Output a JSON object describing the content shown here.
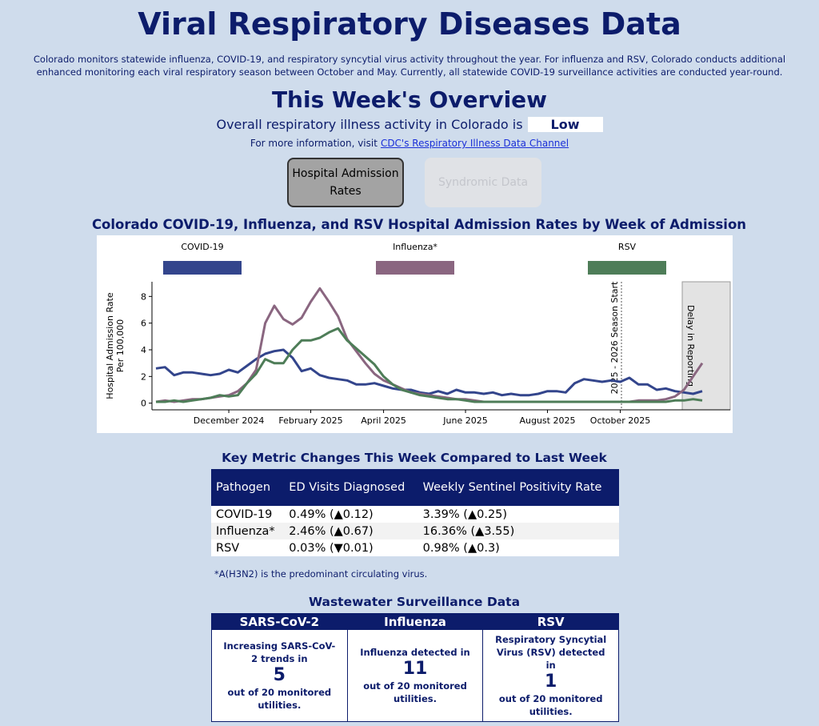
{
  "header": {
    "title": "Viral Respiratory Diseases Data",
    "intro": "Colorado monitors statewide influenza, COVID-19, and respiratory syncytial virus activity throughout the year. For influenza and RSV, Colorado conducts additional enhanced monitoring each viral respiratory season between October and May. Currently, all statewide COVID-19 surveillance activities are conducted year-round."
  },
  "overview": {
    "title": "This Week's Overview",
    "activity_text": "Overall respiratory illness activity in Colorado is",
    "activity_level": "Low",
    "more_info": "For more information, visit",
    "link": "CDC's Respiratory Illness Data Channel"
  },
  "buttons": [
    "Hospital Admission Rates",
    "Syndromic Data"
  ],
  "chart_data": {
    "type": "line",
    "title": "Colorado COVID-19, Influenza, and RSV Hospital Admission Rates by Week of Admission",
    "ylabel": [
      "Hospital Admission Rate",
      "Per 100,000"
    ],
    "categories": [
      null,
      null,
      null,
      null,
      null,
      null,
      null,
      null,
      "December 2024",
      null,
      null,
      null,
      null,
      null,
      null,
      null,
      null,
      "February 2025",
      null,
      null,
      null,
      null,
      null,
      null,
      null,
      "April 2025",
      null,
      null,
      null,
      null,
      null,
      null,
      null,
      null,
      "June 2025",
      null,
      null,
      null,
      null,
      null,
      null,
      null,
      null,
      "August 2025",
      null,
      null,
      null,
      null,
      null,
      null,
      null,
      "October 2025",
      null,
      null,
      null,
      null,
      null,
      null,
      null,
      null,
      null
    ],
    "ylim": [
      -0.5,
      9.1
    ],
    "yticks": [
      0,
      2,
      4,
      6,
      8
    ],
    "annotations": [
      "2025 - 2026 Season Start",
      "Delay in Reporting"
    ],
    "series": [
      {
        "name": "COVID-19",
        "color": "#33458c",
        "values": [
          2.6,
          2.7,
          2.1,
          2.3,
          2.3,
          2.2,
          2.1,
          2.2,
          2.5,
          2.3,
          2.8,
          3.3,
          3.7,
          3.9,
          4.0,
          3.4,
          2.4,
          2.6,
          2.1,
          1.9,
          1.8,
          1.7,
          1.4,
          1.4,
          1.5,
          1.3,
          1.1,
          1.0,
          1.0,
          0.8,
          0.7,
          0.9,
          0.7,
          1.0,
          0.8,
          0.8,
          0.7,
          0.8,
          0.6,
          0.7,
          0.6,
          0.6,
          0.7,
          0.9,
          0.9,
          0.8,
          1.5,
          1.8,
          1.7,
          1.6,
          1.7,
          1.6,
          1.9,
          1.4,
          1.4,
          1.0,
          1.1,
          0.9,
          0.8,
          0.7,
          0.9
        ]
      },
      {
        "name": "Influenza*",
        "color": "#8a6680",
        "values": [
          0.1,
          0.2,
          0.1,
          0.2,
          0.3,
          0.3,
          0.4,
          0.5,
          0.6,
          0.9,
          1.5,
          2.5,
          6.0,
          7.3,
          6.3,
          5.9,
          6.4,
          7.6,
          8.6,
          7.6,
          6.5,
          4.8,
          3.9,
          3.0,
          2.2,
          1.7,
          1.4,
          1.1,
          0.8,
          0.7,
          0.6,
          0.5,
          0.4,
          0.3,
          0.3,
          0.2,
          0.1,
          0.1,
          0.1,
          0.1,
          0.1,
          0.1,
          0.1,
          0.1,
          0.1,
          0.1,
          0.1,
          0.1,
          0.1,
          0.1,
          0.1,
          0.1,
          0.1,
          0.2,
          0.2,
          0.2,
          0.3,
          0.5,
          1.0,
          2.0,
          3.0
        ]
      },
      {
        "name": "RSV",
        "color": "#4e7d58",
        "values": [
          0.1,
          0.1,
          0.2,
          0.1,
          0.2,
          0.3,
          0.4,
          0.6,
          0.5,
          0.6,
          1.5,
          2.2,
          3.3,
          3.0,
          3.0,
          4.0,
          4.7,
          4.7,
          4.9,
          5.3,
          5.6,
          4.7,
          4.1,
          3.5,
          2.9,
          2.0,
          1.4,
          1.0,
          0.8,
          0.6,
          0.5,
          0.4,
          0.3,
          0.3,
          0.2,
          0.1,
          0.1,
          0.1,
          0.1,
          0.1,
          0.1,
          0.1,
          0.1,
          0.1,
          0.1,
          0.1,
          0.1,
          0.1,
          0.1,
          0.1,
          0.1,
          0.1,
          0.1,
          0.1,
          0.1,
          0.1,
          0.1,
          0.2,
          0.2,
          0.3,
          0.2
        ]
      }
    ]
  },
  "table": {
    "title": "Key Metric Changes This Week Compared to Last Week",
    "headers": [
      "Pathogen",
      "ED Visits Diagnosed",
      "Weekly Sentinel Positivity Rate"
    ],
    "rows": [
      [
        "COVID-19",
        "0.49% (▲0.12)",
        "3.39% (▲0.25)"
      ],
      [
        "Influenza*",
        "2.46% (▲0.67)",
        "16.36% (▲3.55)"
      ],
      [
        "RSV",
        "0.03% (▼0.01)",
        "0.98% (▲0.3)"
      ]
    ],
    "note": "*A(H3N2) is the predominant circulating virus."
  },
  "wastewater": {
    "title": "Wastewater Surveillance Data",
    "boxes": [
      {
        "header": "SARS-CoV-2",
        "text": "Increasing SARS-CoV-2 trends in",
        "number": 5,
        "footer": "out of 20 monitored utilities."
      },
      {
        "header": "Influenza",
        "text": "Influenza detected in",
        "number": 11,
        "footer": "out of 20 monitored utilities."
      },
      {
        "header": "RSV",
        "text": "Respiratory Syncytial Virus (RSV) detected in",
        "number": 1,
        "footer": "out of 20 monitored utilities."
      }
    ]
  }
}
